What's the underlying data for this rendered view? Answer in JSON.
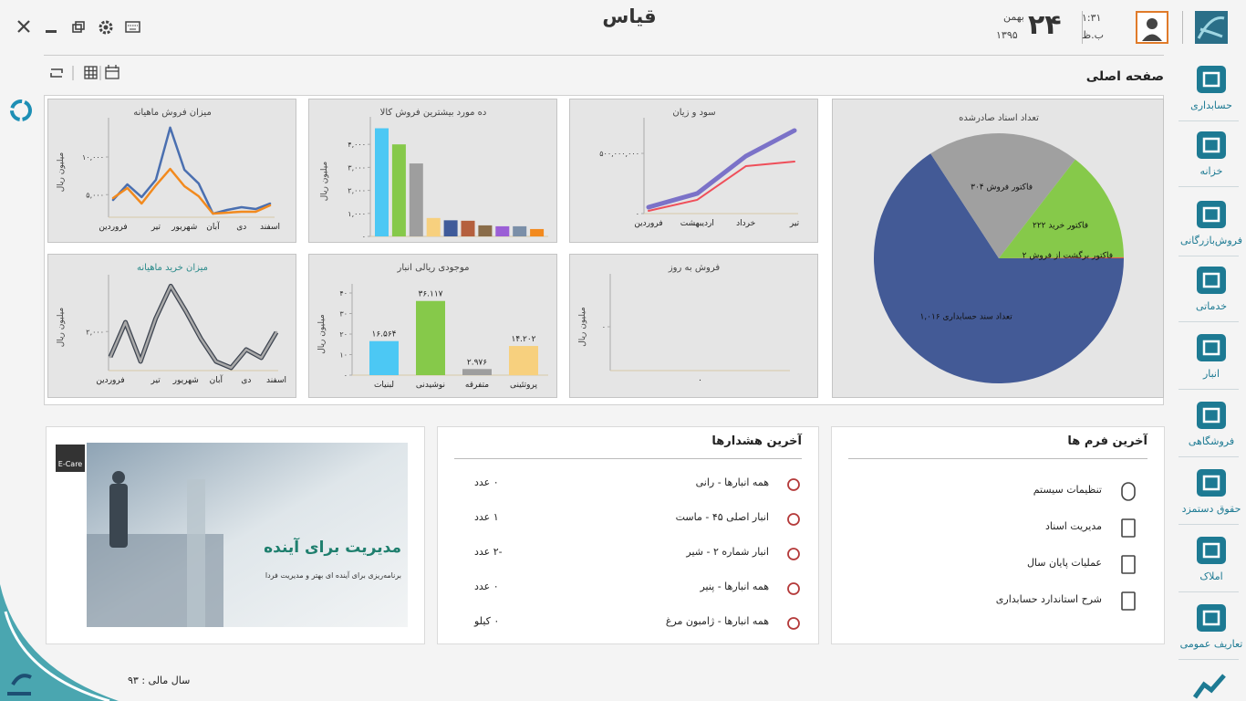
{
  "header": {
    "app_title": "قیاس",
    "day": "۲۴",
    "month": "بهمن",
    "year": "۱۳۹۵",
    "time": "۱:۳۱",
    "period": "ب.ظ"
  },
  "page_title": "صفحه اصلی",
  "sidebar": [
    "حسابداری",
    "خزانه",
    "فروش‌بازرگانی",
    "خدماتی",
    "انبار",
    "فروشگاهی",
    "حقوق دستمزد",
    "املاک",
    "تعاریف عمومی"
  ],
  "chart_data": [
    {
      "type": "line",
      "title": "میزان فروش ماهیانه",
      "y_label": "میلیون ریال",
      "categories": [
        "فروردین",
        null,
        null,
        "تیر",
        null,
        "شهریور",
        null,
        "آبان",
        null,
        "دی",
        null,
        "اسفند"
      ],
      "series": [
        {
          "color": "#4a6fb0",
          "values": [
            4300,
            6360,
            4670,
            6970,
            13900,
            8300,
            6480,
            2480,
            2970,
            3330,
            3090,
            3820
          ]
        },
        {
          "color": "#f28a1e",
          "values": [
            4550,
            5880,
            3820,
            6240,
            8420,
            6120,
            4790,
            2480,
            2610,
            2730,
            2730,
            3580
          ]
        }
      ],
      "ylim": [
        2000,
        14000
      ],
      "yticks": [
        {
          "value": 5000,
          "label": "۵,۰۰۰"
        },
        {
          "value": 10000,
          "label": "۱۰,۰۰۰"
        }
      ]
    },
    {
      "type": "bar",
      "title": "ده مورد بیشترین فروش کالا",
      "y_label": "میلیون ریال",
      "values": [
        4700,
        4000,
        3170,
        800,
        700,
        680,
        480,
        440,
        440,
        320
      ],
      "colors": [
        "#4cc8f4",
        "#86c94a",
        "#9e9e9e",
        "#f7d07e",
        "#3f5b9a",
        "#b5603e",
        "#8a6d4a",
        "#9b5fd6",
        "#7b8fa8",
        "#f28a1e"
      ],
      "ylim": [
        0,
        4800
      ],
      "yticks": [
        {
          "value": 0,
          "label": "۰"
        },
        {
          "value": 1000,
          "label": "۱,۰۰۰"
        },
        {
          "value": 2000,
          "label": "۲,۰۰۰"
        },
        {
          "value": 3000,
          "label": "۳,۰۰۰"
        },
        {
          "value": 4000,
          "label": "۴,۰۰۰"
        }
      ]
    },
    {
      "type": "line",
      "title": "سود و زیان",
      "categories": [
        "فروردین",
        "اردیبهشت",
        "خرداد",
        "تیر"
      ],
      "series": [
        {
          "color": "#7b72c8",
          "values": [
            53000000,
            167000000,
            477000000,
            690000000
          ]
        },
        {
          "color": "#ef4f5a",
          "values": [
            23000000,
            114000000,
            394000000,
            432000000
          ]
        }
      ],
      "ylim": [
        0,
        720000000
      ],
      "yticks": [
        {
          "value": 0,
          "label": "۰"
        },
        {
          "value": 500000000,
          "label": "۵۰۰,۰۰۰,۰۰۰"
        }
      ]
    },
    {
      "type": "pie",
      "title": "تعداد اسناد صادرشده",
      "categories": [
        "تعداد سند حسابداری",
        "فاکتور فروش",
        "فاکتور خرید",
        "فاکتور برگشت از فروش"
      ],
      "values": [
        1016,
        304,
        222,
        2
      ],
      "value_labels": [
        "۱,۰۱۶",
        "۳۰۴",
        "۲۲۲",
        "۲"
      ],
      "colors": [
        "#435a96",
        "#a0a0a0",
        "#86c94a",
        "#e05a4a"
      ]
    },
    {
      "type": "line",
      "title": "میزان خرید ماهیانه",
      "y_label": "میلیون ریال",
      "categories": [
        "فروردین",
        null,
        null,
        "تیر",
        null,
        "شهریور",
        null,
        "آبان",
        null,
        "دی",
        null,
        "اسفند"
      ],
      "series": [
        {
          "color": "#a9a9a9",
          "outline_color": "#3d4450",
          "values": [
            830,
            2430,
            620,
            2600,
            4100,
            2940,
            1670,
            620,
            330,
            1170,
            790,
            1970
          ]
        }
      ],
      "ylim": [
        200,
        4200
      ],
      "yticks": [
        {
          "value": 2000,
          "label": "۲,۰۰۰"
        }
      ]
    },
    {
      "type": "bar",
      "title": "موجودی ریالی انبار",
      "y_label": "میلیون ریال",
      "categories": [
        "لبنیات",
        "نوشیدنی",
        "متفرقه",
        "پروتئینی"
      ],
      "values": [
        16.564,
        36.117,
        2.976,
        14.202
      ],
      "value_labels": [
        "۱۶.۵۶۴",
        "۳۶.۱۱۷",
        "۲.۹۷۶",
        "۱۴.۲۰۲"
      ],
      "colors": [
        "#4cc8f4",
        "#86c94a",
        "#9e9e9e",
        "#f7d07e"
      ],
      "ylim": [
        0,
        40
      ],
      "yticks": [
        {
          "value": 0,
          "label": "۰"
        },
        {
          "value": 10,
          "label": "۱۰"
        },
        {
          "value": 20,
          "label": "۲۰"
        },
        {
          "value": 30,
          "label": "۳۰"
        },
        {
          "value": 40,
          "label": "۴۰"
        }
      ]
    },
    {
      "type": "bar",
      "title": "فروش به روز",
      "y_label": "میلیون ریال",
      "categories": [
        "۰"
      ],
      "values": [
        0
      ],
      "colors": [
        "#4cc8f4"
      ],
      "ylim": [
        -1,
        1
      ],
      "yticks": [
        {
          "value": 0,
          "label": "۰"
        }
      ]
    }
  ],
  "recent_forms": {
    "title": "آخرین فرم ها",
    "items": [
      "تنظیمات سیستم",
      "مدیریت اسناد",
      "عملیات پایان سال",
      "شرح استاندارد حسابداری"
    ]
  },
  "alerts": {
    "title": "آخرین هشدارها",
    "items": [
      {
        "name": "همه انبارها - رانی",
        "amount": "۰ عدد"
      },
      {
        "name": "انبار اصلی ۴۵ - ماست",
        "amount": "۱ عدد"
      },
      {
        "name": "انبار شماره ۲ - شیر",
        "amount": "-۲ عدد"
      },
      {
        "name": "همه انبارها - پنیر",
        "amount": "۰ عدد"
      },
      {
        "name": "همه انبارها - ژامبون مرغ",
        "amount": "۰ کیلو"
      }
    ]
  },
  "banner": {
    "badge": "E-Care",
    "heading": "مدیریت برای آینده",
    "subheading": "برنامه‌ریزی برای آینده ای بهتر و مدیریت فردا"
  },
  "footer": {
    "fiscal_year": "سال مالی : ۹۳"
  }
}
